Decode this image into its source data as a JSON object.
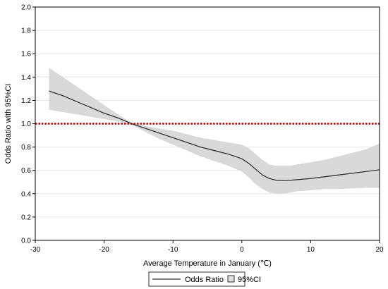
{
  "chart_data": {
    "type": "line",
    "title": "",
    "xlabel": "Average Temperature in January (℃)",
    "ylabel": "Odds Ratio with 95%CI",
    "xlim": [
      -30,
      20
    ],
    "ylim": [
      0,
      2.0
    ],
    "x_ticks": [
      "-30",
      "-20",
      "-10",
      "0",
      "10",
      "20"
    ],
    "y_ticks": [
      "0.0",
      "0.2",
      "0.4",
      "0.6",
      "0.8",
      "1.0",
      "1.2",
      "1.4",
      "1.6",
      "1.8",
      "2.0"
    ],
    "grid": "horizontal",
    "reference_line": {
      "y": 1.0,
      "color": "#c00000",
      "style": "dotted"
    },
    "series": [
      {
        "name": "Odds Ratio",
        "color": "#333333",
        "x": [
          -28,
          -26,
          -24,
          -22,
          -20,
          -18,
          -16,
          -14,
          -12,
          -10,
          -8,
          -6,
          -4,
          -2,
          0,
          1,
          2,
          3,
          4,
          5,
          6,
          7,
          8,
          10,
          12,
          14,
          16,
          18,
          20
        ],
        "y": [
          1.28,
          1.24,
          1.19,
          1.14,
          1.09,
          1.05,
          1.0,
          0.96,
          0.92,
          0.88,
          0.84,
          0.8,
          0.77,
          0.74,
          0.7,
          0.66,
          0.61,
          0.56,
          0.53,
          0.515,
          0.512,
          0.515,
          0.52,
          0.53,
          0.545,
          0.56,
          0.575,
          0.59,
          0.605
        ]
      },
      {
        "name": "95%CI",
        "color": "#d9d9d9",
        "x": [
          -28,
          -26,
          -24,
          -22,
          -20,
          -18,
          -16,
          -14,
          -12,
          -10,
          -8,
          -6,
          -4,
          -2,
          0,
          1,
          2,
          3,
          4,
          5,
          6,
          7,
          8,
          10,
          12,
          14,
          16,
          18,
          20
        ],
        "lower": [
          1.12,
          1.1,
          1.08,
          1.06,
          1.04,
          1.02,
          0.99,
          0.93,
          0.87,
          0.82,
          0.77,
          0.72,
          0.68,
          0.64,
          0.59,
          0.54,
          0.48,
          0.44,
          0.41,
          0.4,
          0.4,
          0.41,
          0.42,
          0.43,
          0.44,
          0.44,
          0.445,
          0.45,
          0.45
        ],
        "upper": [
          1.48,
          1.4,
          1.32,
          1.24,
          1.16,
          1.08,
          1.01,
          0.98,
          0.96,
          0.94,
          0.91,
          0.88,
          0.86,
          0.84,
          0.82,
          0.79,
          0.74,
          0.69,
          0.65,
          0.64,
          0.64,
          0.64,
          0.65,
          0.67,
          0.69,
          0.72,
          0.75,
          0.78,
          0.83
        ]
      }
    ],
    "legend": {
      "position": "bottom",
      "items": [
        {
          "label": "Odds Ratio",
          "symbol": "line"
        },
        {
          "label": "95%CI",
          "symbol": "box"
        }
      ]
    }
  }
}
